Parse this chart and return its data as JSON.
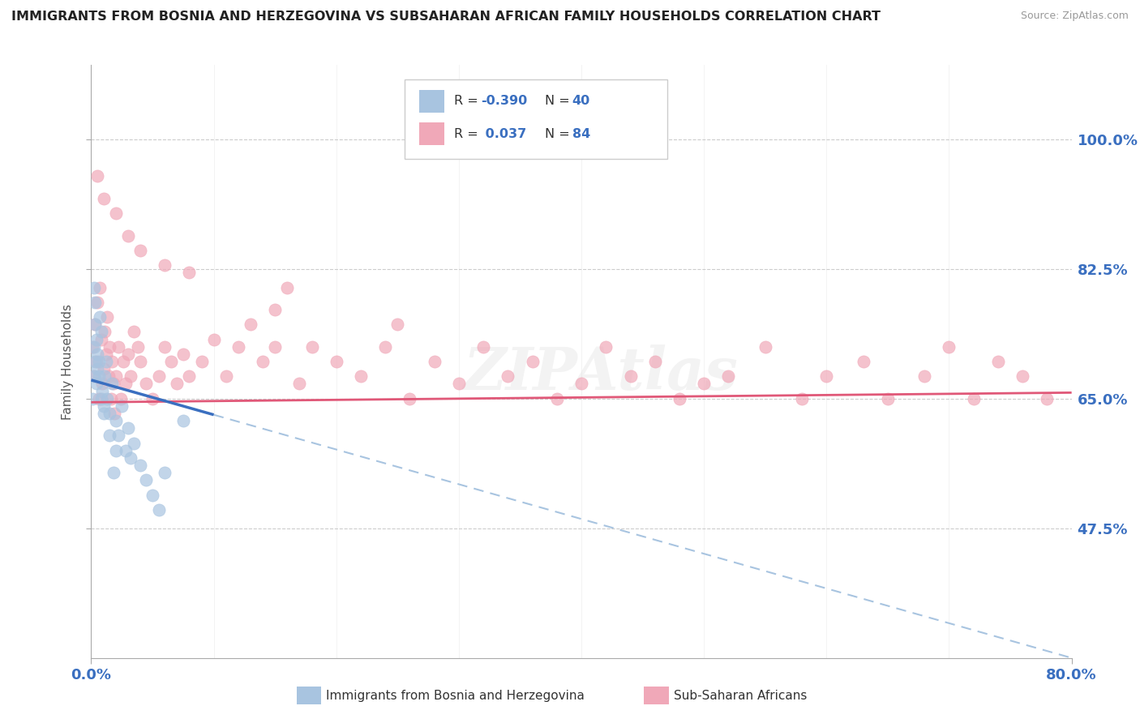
{
  "title": "IMMIGRANTS FROM BOSNIA AND HERZEGOVINA VS SUBSAHARAN AFRICAN FAMILY HOUSEHOLDS CORRELATION CHART",
  "source": "Source: ZipAtlas.com",
  "ylabel_label": "Family Households",
  "xlim": [
    0,
    80
  ],
  "ylim": [
    30,
    110
  ],
  "yticks": [
    47.5,
    65.0,
    82.5,
    100.0
  ],
  "ytick_labels": [
    "47.5%",
    "65.0%",
    "82.5%",
    "100.0%"
  ],
  "xtick_left": "0.0%",
  "xtick_right": "80.0%",
  "bosnia_color": "#a8c4e0",
  "africa_color": "#f0a8b8",
  "bosnia_line_color": "#3a6fc0",
  "africa_line_color": "#e05878",
  "dashed_line_color": "#a8c4e0",
  "bosnia_x": [
    0.1,
    0.2,
    0.2,
    0.3,
    0.3,
    0.4,
    0.4,
    0.5,
    0.5,
    0.6,
    0.7,
    0.8,
    0.9,
    1.0,
    1.1,
    1.2,
    1.3,
    1.5,
    1.7,
    2.0,
    2.2,
    2.5,
    2.8,
    3.0,
    3.5,
    4.0,
    4.5,
    5.0,
    5.5,
    1.0,
    1.5,
    2.0,
    0.8,
    0.6,
    0.3,
    0.2,
    1.8,
    3.2,
    7.5,
    6.0
  ],
  "bosnia_y": [
    65,
    68,
    72,
    70,
    75,
    67,
    73,
    71,
    69,
    68,
    76,
    74,
    66,
    64,
    68,
    70,
    65,
    63,
    67,
    62,
    60,
    64,
    58,
    61,
    59,
    56,
    54,
    52,
    50,
    63,
    60,
    58,
    65,
    70,
    78,
    80,
    55,
    57,
    62,
    55
  ],
  "africa_x": [
    0.1,
    0.2,
    0.3,
    0.4,
    0.5,
    0.6,
    0.7,
    0.8,
    0.9,
    1.0,
    1.1,
    1.2,
    1.3,
    1.4,
    1.5,
    1.6,
    1.7,
    1.8,
    1.9,
    2.0,
    2.2,
    2.4,
    2.6,
    2.8,
    3.0,
    3.2,
    3.5,
    3.8,
    4.0,
    4.5,
    5.0,
    5.5,
    6.0,
    6.5,
    7.0,
    7.5,
    8.0,
    9.0,
    10.0,
    11.0,
    12.0,
    13.0,
    14.0,
    15.0,
    16.0,
    17.0,
    18.0,
    20.0,
    22.0,
    24.0,
    26.0,
    28.0,
    30.0,
    32.0,
    34.0,
    36.0,
    38.0,
    40.0,
    42.0,
    44.0,
    46.0,
    48.0,
    50.0,
    52.0,
    55.0,
    58.0,
    60.0,
    63.0,
    65.0,
    68.0,
    70.0,
    72.0,
    74.0,
    76.0,
    78.0,
    0.5,
    1.0,
    2.0,
    3.0,
    4.0,
    6.0,
    8.0,
    15.0,
    25.0
  ],
  "africa_y": [
    72,
    68,
    75,
    70,
    78,
    65,
    80,
    73,
    67,
    69,
    74,
    71,
    76,
    68,
    72,
    65,
    70,
    67,
    63,
    68,
    72,
    65,
    70,
    67,
    71,
    68,
    74,
    72,
    70,
    67,
    65,
    68,
    72,
    70,
    67,
    71,
    68,
    70,
    73,
    68,
    72,
    75,
    70,
    72,
    80,
    67,
    72,
    70,
    68,
    72,
    65,
    70,
    67,
    72,
    68,
    70,
    65,
    67,
    72,
    68,
    70,
    65,
    67,
    68,
    72,
    65,
    68,
    70,
    65,
    68,
    72,
    65,
    70,
    68,
    65,
    95,
    92,
    90,
    87,
    85,
    83,
    82,
    77,
    75
  ],
  "bosnia_trend_x0": 0.0,
  "bosnia_trend_y0": 67.5,
  "bosnia_trend_x1": 80.0,
  "bosnia_trend_y1": 30.0,
  "bosnia_solid_end": 10.0,
  "africa_trend_x0": 0.0,
  "africa_trend_y0": 64.5,
  "africa_trend_x1": 80.0,
  "africa_trend_y1": 65.8,
  "watermark": "ZIPAtlas",
  "legend_R1": "-0.390",
  "legend_N1": "40",
  "legend_R2": "0.037",
  "legend_N2": "84",
  "legend_label1": "Immigrants from Bosnia and Herzegovina",
  "legend_label2": "Sub-Saharan Africans"
}
